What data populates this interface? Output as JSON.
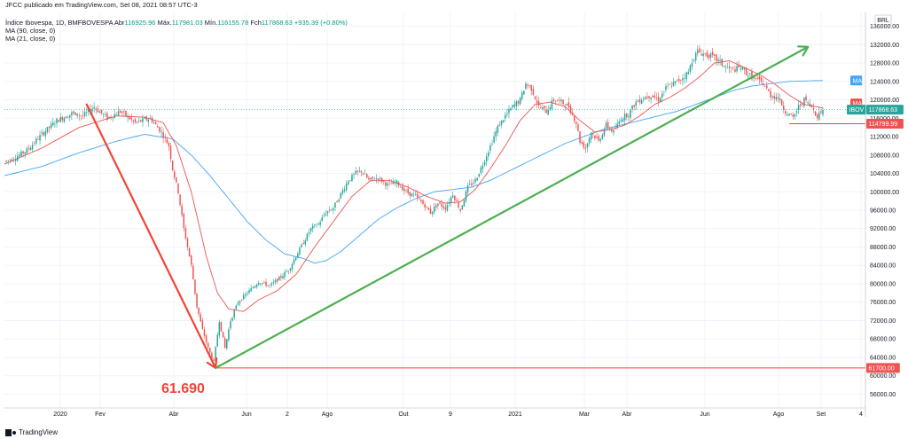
{
  "header": {
    "published": "JFCC publicado em TradingView.com, Set 08, 2021 08:57 UTC-3",
    "symbol": "Índice Ibovespa, 1D, BMFBOVESPA",
    "open_label": "Abr",
    "open": "116925.96",
    "high_label": "Máx.",
    "high": "117981.03",
    "low_label": "Mín.",
    "low": "116155.78",
    "close_label": "Fch",
    "close": "117868.63",
    "change": "+935.39 (+0.80%)",
    "ma90": "MA (90, close, 0)",
    "ma21": "MA (21, close, 0)"
  },
  "footer": {
    "brand": "TradingView"
  },
  "colors": {
    "up": "#26a69a",
    "down": "#ef5350",
    "ma90": "#42a5f5",
    "ma21": "#ef5350",
    "trend_up": "#4caf50",
    "trend_down": "#f44336",
    "grid": "#f0f3fa"
  },
  "chart_data": {
    "type": "candlestick",
    "currency": "BRL",
    "y_ticks": [
      136000,
      132000,
      128000,
      124000,
      120000,
      116000,
      112000,
      108000,
      104000,
      100000,
      96000,
      92000,
      88000,
      84000,
      80000,
      76000,
      72000,
      68000,
      64000,
      60000,
      56000
    ],
    "ylim": [
      53000,
      139000
    ],
    "x_ticks": [
      "2020",
      "Fev",
      "Abr",
      "Jun",
      "2",
      "Ago",
      "Out",
      "9",
      "2021",
      "Mar",
      "Abr",
      "Jun",
      "Ago",
      "Set",
      "4"
    ],
    "price_tags": {
      "ma": "MA",
      "ma21": "MA",
      "last_label": "IBOV",
      "last": "117868.63",
      "support": "114799.99",
      "low_line": "61700.00"
    },
    "annotation": "61.690",
    "price_path": [
      [
        0,
        106500
      ],
      [
        6,
        107500
      ],
      [
        12,
        109000
      ],
      [
        20,
        112500
      ],
      [
        28,
        115500
      ],
      [
        36,
        117000
      ],
      [
        42,
        116500
      ],
      [
        48,
        118500
      ],
      [
        55,
        116000
      ],
      [
        62,
        117500
      ],
      [
        70,
        115000
      ],
      [
        78,
        116000
      ],
      [
        84,
        113000
      ],
      [
        88,
        110000
      ],
      [
        90,
        105000
      ],
      [
        93,
        100000
      ],
      [
        96,
        92000
      ],
      [
        100,
        84000
      ],
      [
        103,
        75000
      ],
      [
        106,
        70000
      ],
      [
        109,
        66000
      ],
      [
        112,
        63000
      ],
      [
        115,
        72000
      ],
      [
        118,
        66000
      ],
      [
        121,
        72000
      ],
      [
        125,
        76000
      ],
      [
        130,
        78000
      ],
      [
        136,
        80500
      ],
      [
        142,
        79500
      ],
      [
        148,
        81500
      ],
      [
        152,
        83000
      ],
      [
        156,
        86000
      ],
      [
        160,
        89000
      ],
      [
        164,
        92000
      ],
      [
        168,
        93000
      ],
      [
        172,
        95500
      ],
      [
        176,
        96500
      ],
      [
        180,
        99500
      ],
      [
        184,
        102500
      ],
      [
        188,
        104000
      ],
      [
        191,
        104500
      ],
      [
        195,
        102500
      ],
      [
        200,
        103000
      ],
      [
        205,
        101500
      ],
      [
        210,
        102000
      ],
      [
        215,
        100000
      ],
      [
        220,
        99000
      ],
      [
        225,
        97000
      ],
      [
        228,
        95500
      ],
      [
        232,
        97500
      ],
      [
        236,
        96500
      ],
      [
        240,
        99500
      ],
      [
        244,
        96000
      ],
      [
        248,
        101000
      ],
      [
        252,
        102500
      ],
      [
        256,
        106000
      ],
      [
        260,
        110000
      ],
      [
        264,
        114000
      ],
      [
        268,
        116500
      ],
      [
        272,
        118500
      ],
      [
        276,
        120000
      ],
      [
        279,
        123500
      ],
      [
        282,
        122500
      ],
      [
        286,
        118500
      ],
      [
        290,
        117500
      ],
      [
        294,
        120000
      ],
      [
        298,
        119500
      ],
      [
        302,
        118500
      ],
      [
        306,
        115000
      ],
      [
        308,
        111000
      ],
      [
        311,
        109500
      ],
      [
        314,
        113000
      ],
      [
        318,
        111000
      ],
      [
        322,
        114500
      ],
      [
        326,
        113000
      ],
      [
        330,
        116000
      ],
      [
        334,
        117000
      ],
      [
        338,
        119500
      ],
      [
        342,
        120500
      ],
      [
        346,
        121000
      ],
      [
        350,
        120000
      ],
      [
        354,
        122500
      ],
      [
        358,
        123500
      ],
      [
        362,
        124500
      ],
      [
        366,
        126000
      ],
      [
        368,
        128500
      ],
      [
        371,
        130500
      ],
      [
        374,
        130000
      ],
      [
        378,
        129500
      ],
      [
        382,
        128500
      ],
      [
        386,
        127000
      ],
      [
        390,
        126500
      ],
      [
        394,
        127000
      ],
      [
        398,
        125500
      ],
      [
        402,
        124500
      ],
      [
        406,
        123500
      ],
      [
        410,
        121000
      ],
      [
        414,
        120500
      ],
      [
        418,
        117500
      ],
      [
        422,
        116000
      ],
      [
        425,
        118500
      ],
      [
        428,
        120000
      ],
      [
        432,
        118500
      ],
      [
        435,
        116500
      ],
      [
        438,
        117868
      ]
    ],
    "ma21_path": [
      [
        0,
        106000
      ],
      [
        20,
        109500
      ],
      [
        40,
        114000
      ],
      [
        60,
        116500
      ],
      [
        75,
        116200
      ],
      [
        85,
        115000
      ],
      [
        92,
        110000
      ],
      [
        100,
        100000
      ],
      [
        108,
        86000
      ],
      [
        114,
        78000
      ],
      [
        120,
        74500
      ],
      [
        128,
        74000
      ],
      [
        136,
        76500
      ],
      [
        146,
        78500
      ],
      [
        156,
        82000
      ],
      [
        166,
        88000
      ],
      [
        176,
        93500
      ],
      [
        186,
        99000
      ],
      [
        196,
        102500
      ],
      [
        206,
        102500
      ],
      [
        216,
        101000
      ],
      [
        226,
        99000
      ],
      [
        236,
        97500
      ],
      [
        244,
        97800
      ],
      [
        252,
        100500
      ],
      [
        260,
        105000
      ],
      [
        268,
        110000
      ],
      [
        276,
        115500
      ],
      [
        284,
        119000
      ],
      [
        292,
        119500
      ],
      [
        300,
        118500
      ],
      [
        308,
        115500
      ],
      [
        316,
        113000
      ],
      [
        324,
        113500
      ],
      [
        332,
        114500
      ],
      [
        340,
        116500
      ],
      [
        348,
        119000
      ],
      [
        356,
        120500
      ],
      [
        364,
        122500
      ],
      [
        372,
        125000
      ],
      [
        380,
        128000
      ],
      [
        388,
        128500
      ],
      [
        396,
        127000
      ],
      [
        404,
        125500
      ],
      [
        412,
        123500
      ],
      [
        420,
        121000
      ],
      [
        428,
        119000
      ],
      [
        438,
        118200
      ]
    ],
    "ma90_path": [
      [
        0,
        103500
      ],
      [
        20,
        105500
      ],
      [
        40,
        108500
      ],
      [
        60,
        111000
      ],
      [
        75,
        112500
      ],
      [
        90,
        111500
      ],
      [
        100,
        108000
      ],
      [
        110,
        103500
      ],
      [
        120,
        98500
      ],
      [
        130,
        93500
      ],
      [
        140,
        89500
      ],
      [
        150,
        86500
      ],
      [
        160,
        85500
      ],
      [
        166,
        84500
      ],
      [
        172,
        85000
      ],
      [
        180,
        87000
      ],
      [
        190,
        90500
      ],
      [
        200,
        94000
      ],
      [
        210,
        96500
      ],
      [
        220,
        98500
      ],
      [
        230,
        100000
      ],
      [
        240,
        100500
      ],
      [
        250,
        101000
      ],
      [
        260,
        102500
      ],
      [
        270,
        104500
      ],
      [
        280,
        106500
      ],
      [
        290,
        108500
      ],
      [
        300,
        110500
      ],
      [
        310,
        112000
      ],
      [
        320,
        113500
      ],
      [
        330,
        114500
      ],
      [
        340,
        115500
      ],
      [
        350,
        116500
      ],
      [
        360,
        117500
      ],
      [
        370,
        119000
      ],
      [
        380,
        120500
      ],
      [
        390,
        122000
      ],
      [
        400,
        123000
      ],
      [
        410,
        123500
      ],
      [
        420,
        124000
      ],
      [
        438,
        124200
      ]
    ],
    "trendlines": [
      {
        "color": "trend_down",
        "from": [
          44,
          119000
        ],
        "to": [
          113,
          61700
        ],
        "arrow": true
      },
      {
        "color": "trend_up",
        "from": [
          113,
          61700
        ],
        "to": [
          430,
          131500
        ],
        "arrow": true
      }
    ],
    "hlines": [
      {
        "color": "trend_down",
        "from": 113,
        "value": 61700
      },
      {
        "color": "trend_down",
        "from": 420,
        "value": 114800
      }
    ]
  }
}
